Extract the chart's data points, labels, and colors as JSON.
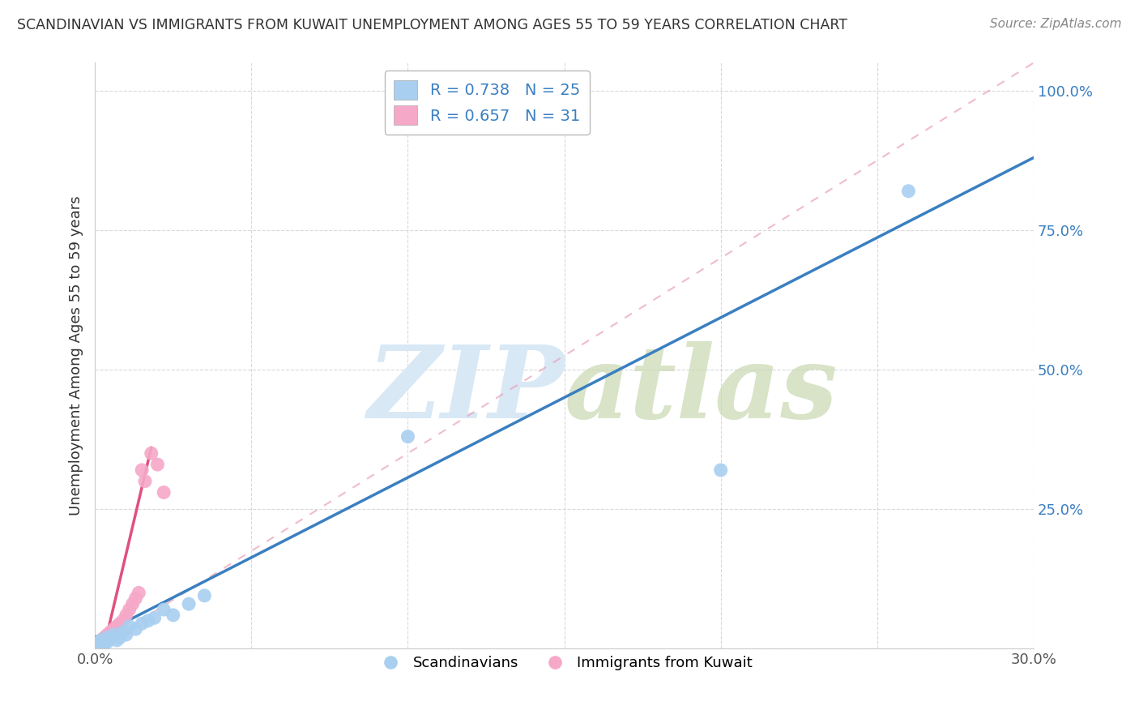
{
  "title": "SCANDINAVIAN VS IMMIGRANTS FROM KUWAIT UNEMPLOYMENT AMONG AGES 55 TO 59 YEARS CORRELATION CHART",
  "source": "Source: ZipAtlas.com",
  "ylabel": "Unemployment Among Ages 55 to 59 years",
  "xlim": [
    0.0,
    0.3
  ],
  "ylim": [
    0.0,
    1.05
  ],
  "xticks": [
    0.0,
    0.05,
    0.1,
    0.15,
    0.2,
    0.25,
    0.3
  ],
  "yticks": [
    0.0,
    0.25,
    0.5,
    0.75,
    1.0
  ],
  "legend_blue_r": "R = 0.738",
  "legend_blue_n": "N = 25",
  "legend_pink_r": "R = 0.657",
  "legend_pink_n": "N = 31",
  "blue_color": "#a8cff0",
  "pink_color": "#f5a8c8",
  "blue_line_color": "#3a7fc1",
  "pink_line_color": "#e05080",
  "pink_dash_color": "#e8a0b8",
  "watermark_color": "#d8e8f5",
  "blue_scatter_x": [
    0.001,
    0.001,
    0.002,
    0.002,
    0.003,
    0.004,
    0.004,
    0.005,
    0.006,
    0.007,
    0.008,
    0.009,
    0.01,
    0.011,
    0.013,
    0.015,
    0.017,
    0.019,
    0.022,
    0.025,
    0.03,
    0.035,
    0.1,
    0.2,
    0.26
  ],
  "blue_scatter_y": [
    0.005,
    0.01,
    0.008,
    0.015,
    0.01,
    0.012,
    0.02,
    0.018,
    0.025,
    0.015,
    0.02,
    0.03,
    0.025,
    0.04,
    0.035,
    0.045,
    0.05,
    0.055,
    0.07,
    0.06,
    0.08,
    0.095,
    0.38,
    0.32,
    0.82
  ],
  "pink_scatter_x": [
    0.001,
    0.001,
    0.001,
    0.001,
    0.001,
    0.002,
    0.002,
    0.002,
    0.002,
    0.003,
    0.003,
    0.003,
    0.004,
    0.004,
    0.005,
    0.005,
    0.006,
    0.006,
    0.007,
    0.008,
    0.009,
    0.01,
    0.011,
    0.012,
    0.013,
    0.014,
    0.015,
    0.016,
    0.018,
    0.02,
    0.022
  ],
  "pink_scatter_y": [
    0.002,
    0.004,
    0.006,
    0.008,
    0.01,
    0.005,
    0.008,
    0.012,
    0.015,
    0.01,
    0.015,
    0.02,
    0.018,
    0.025,
    0.02,
    0.03,
    0.025,
    0.035,
    0.04,
    0.045,
    0.05,
    0.06,
    0.07,
    0.08,
    0.09,
    0.1,
    0.32,
    0.3,
    0.35,
    0.33,
    0.28
  ],
  "blue_trend_x": [
    0.0,
    0.3
  ],
  "blue_trend_y": [
    0.02,
    0.88
  ],
  "pink_solid_trend_x": [
    0.003,
    0.018
  ],
  "pink_solid_trend_y": [
    0.005,
    0.36
  ],
  "pink_dash_trend_x": [
    0.0,
    0.3
  ],
  "pink_dash_trend_y": [
    0.0,
    1.05
  ],
  "grid_color": "#d0d0d0",
  "background_color": "#ffffff"
}
